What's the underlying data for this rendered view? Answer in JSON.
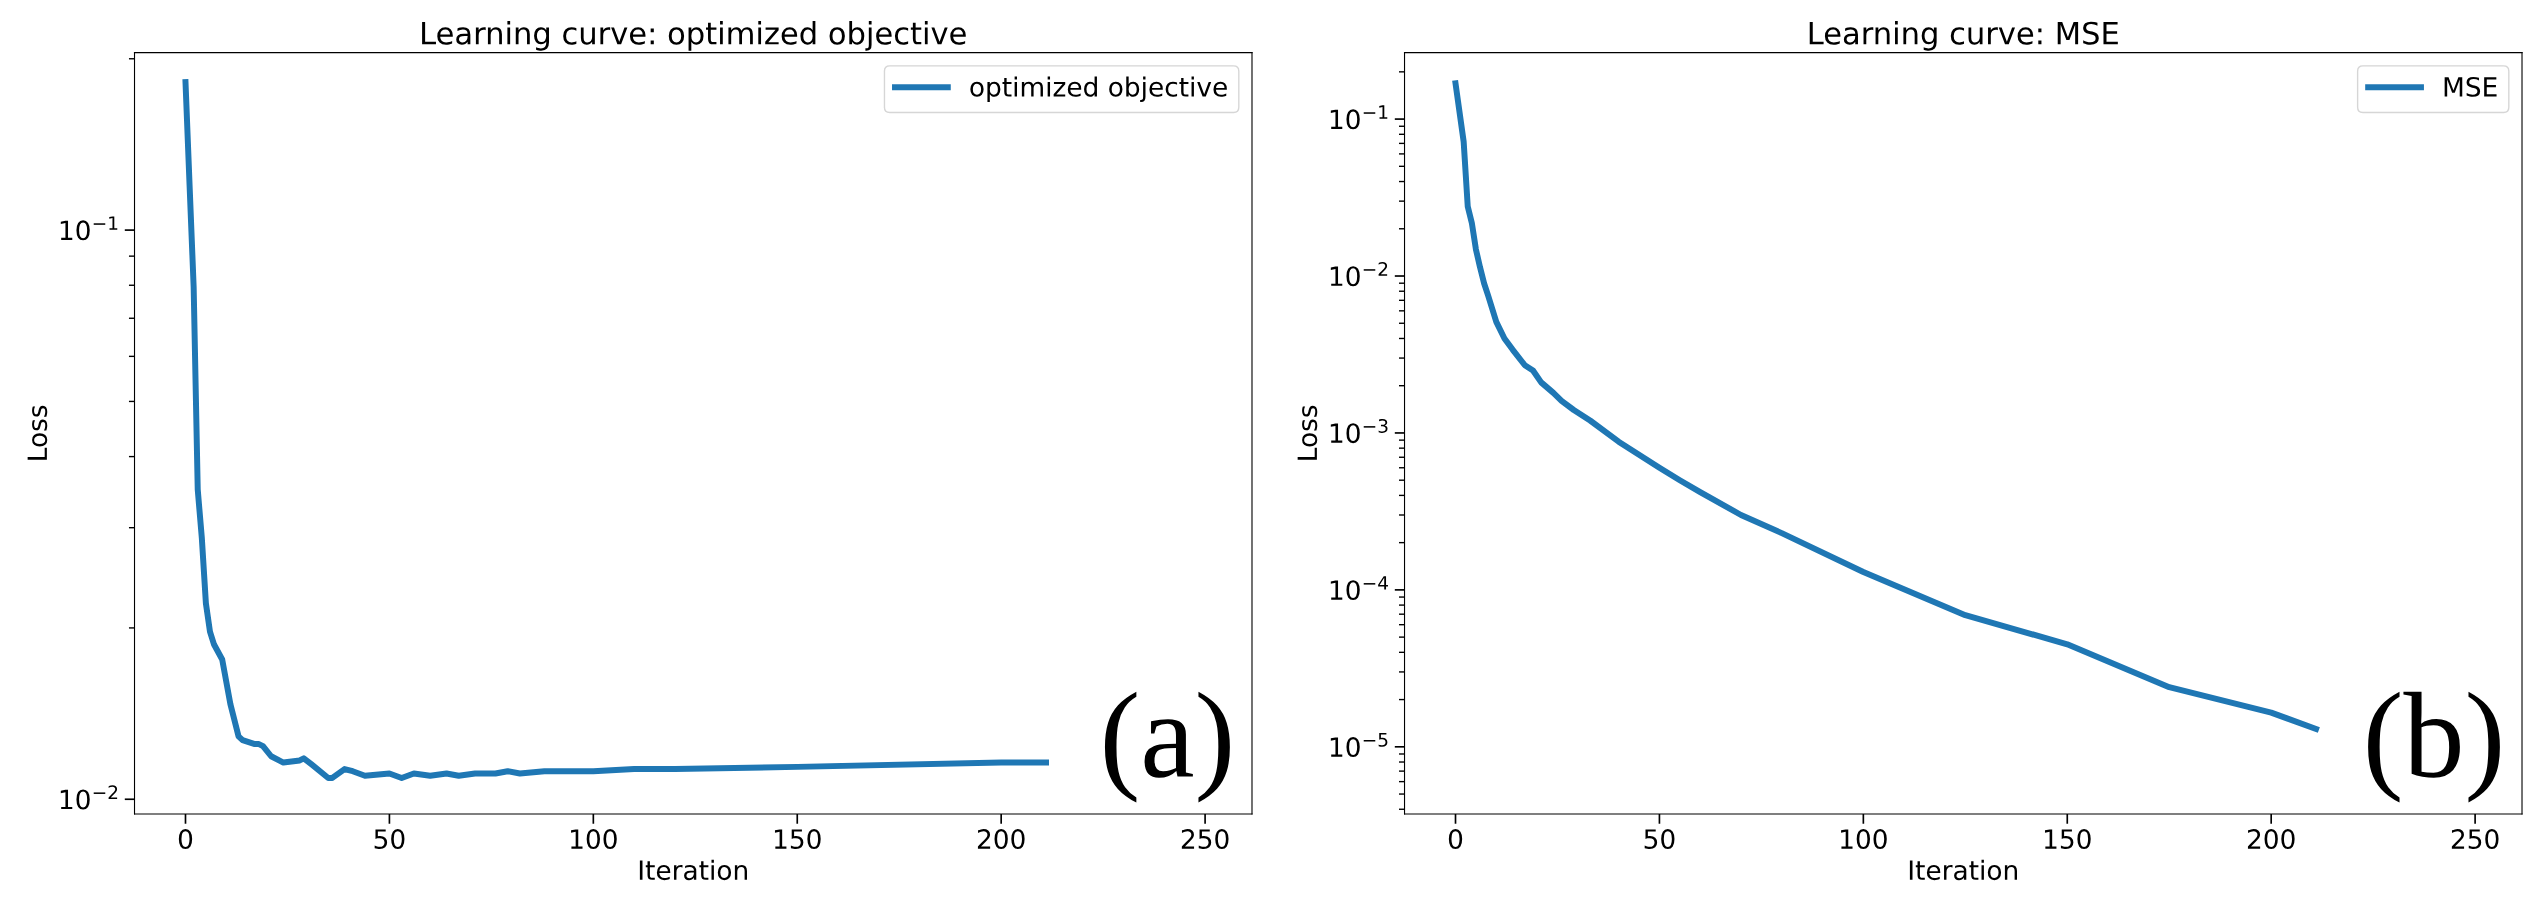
{
  "chart_data": [
    {
      "type": "line",
      "title": "Learning curve: optimized objective",
      "xlabel": "Iteration",
      "ylabel": "Loss",
      "log": "y",
      "grid": false,
      "legend": "top right",
      "marker": "none",
      "line_style": "solid",
      "xlim": [
        -12.5,
        261.5
      ],
      "xticks": [
        0,
        50,
        100,
        150,
        200,
        250
      ],
      "ylim": [
        0.00942,
        0.205
      ],
      "yticks": [
        {
          "value": 0.01,
          "label": "10$^{−2}$"
        },
        {
          "value": 0.1,
          "label": "10$^{−1}$"
        }
      ],
      "annotations": [
        "(a)"
      ],
      "series": [
        {
          "name": "optimized objective",
          "color": "#1f77b4",
          "x": [
            0,
            1,
            2,
            3,
            4,
            5,
            6,
            7,
            9,
            11,
            13,
            14,
            17,
            18,
            19,
            21,
            24,
            28,
            29,
            31,
            35,
            36,
            39,
            41,
            44,
            50,
            53,
            56,
            60,
            64,
            67,
            71,
            76,
            79,
            82,
            88,
            100,
            110,
            120,
            150,
            200,
            211
          ],
          "values": [
            0.182,
            0.12,
            0.0795,
            0.035,
            0.0288,
            0.0221,
            0.0197,
            0.0187,
            0.0176,
            0.0147,
            0.0129,
            0.0127,
            0.0125,
            0.0125,
            0.0124,
            0.0119,
            0.0116,
            0.0117,
            0.0118,
            0.0115,
            0.0109,
            0.0109,
            0.0113,
            0.0112,
            0.011,
            0.0111,
            0.0109,
            0.0111,
            0.011,
            0.0111,
            0.011,
            0.0111,
            0.0111,
            0.0112,
            0.0111,
            0.0112,
            0.0112,
            0.0113,
            0.0113,
            0.0114,
            0.0116,
            0.0116
          ]
        }
      ]
    },
    {
      "type": "line",
      "title": "Learning curve: MSE",
      "xlabel": "Iteration",
      "ylabel": "Loss",
      "log": "y",
      "grid": false,
      "legend": "top right",
      "marker": "none",
      "line_style": "solid",
      "xlim": [
        -12.5,
        261.5
      ],
      "xticks": [
        0,
        50,
        100,
        150,
        200,
        250
      ],
      "ylim": [
        3.73e-06,
        0.265
      ],
      "yticks": [
        {
          "value": 1e-05,
          "label": "10$^{−5}$"
        },
        {
          "value": 0.0001,
          "label": "10$^{−4}$"
        },
        {
          "value": 0.001,
          "label": "10$^{−3}$"
        },
        {
          "value": 0.01,
          "label": "10$^{−2}$"
        },
        {
          "value": 0.1,
          "label": "10$^{−1}$"
        }
      ],
      "annotations": [
        "(b)"
      ],
      "series": [
        {
          "name": "MSE",
          "color": "#1f77b4",
          "x": [
            0,
            2,
            3,
            4,
            5,
            6,
            7,
            8,
            10,
            12,
            14,
            17,
            19,
            21,
            24,
            26,
            29,
            33,
            40,
            50,
            55,
            60,
            70,
            80,
            100,
            125,
            150,
            175,
            200,
            211
          ],
          "values": [
            0.169,
            0.0717,
            0.0277,
            0.0218,
            0.0148,
            0.0114,
            0.009,
            0.0075,
            0.0051,
            0.004,
            0.0034,
            0.0027,
            0.0025,
            0.0021,
            0.0018,
            0.0016,
            0.0014,
            0.0012,
            0.00088,
            0.0006,
            0.0005,
            0.00042,
            0.0003,
            0.00023,
            0.00013,
            6.9e-05,
            4.5e-05,
            2.4e-05,
            1.65e-05,
            1.3e-05
          ]
        }
      ]
    }
  ]
}
